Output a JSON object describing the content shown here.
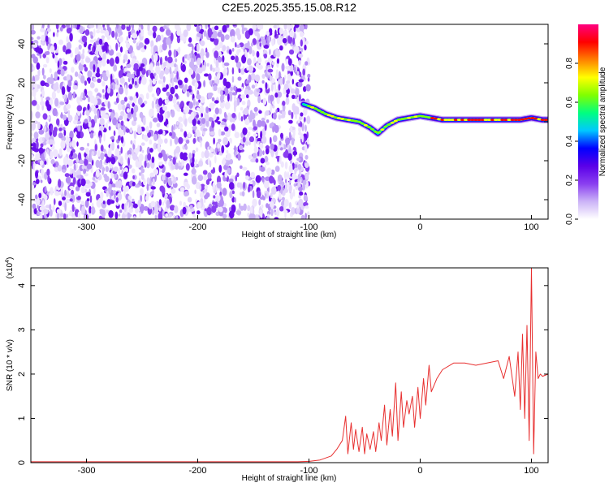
{
  "title": "C2E5.2025.355.15.08.R12",
  "chart_data": [
    {
      "type": "heatmap",
      "xlabel": "Height of straight line (km)",
      "ylabel": "Frequency (Hz)",
      "xlim": [
        -350,
        115
      ],
      "ylim": [
        -50,
        50
      ],
      "xticks": [
        "-300",
        "-200",
        "-100",
        "0",
        "100"
      ],
      "xtick_values": [
        -300,
        -200,
        -100,
        0,
        100
      ],
      "yticks": [
        "-40",
        "-20",
        "0",
        "20",
        "40"
      ],
      "ytick_values": [
        -40,
        -20,
        0,
        20,
        40
      ],
      "noise_region_km": [
        -350,
        -100
      ],
      "ridge": {
        "x": [
          -105,
          -95,
          -85,
          -75,
          -65,
          -55,
          -45,
          -38,
          -30,
          -20,
          -10,
          0,
          10,
          20,
          40,
          60,
          80,
          90,
          100,
          110,
          115
        ],
        "y": [
          9,
          7,
          4,
          2,
          1,
          0,
          -3,
          -6,
          -2,
          1,
          2,
          3,
          2,
          1,
          1,
          1,
          1,
          1,
          2,
          1,
          1
        ]
      },
      "colorbar": {
        "label": "Normalized spectral amplitude",
        "range": [
          0,
          1
        ],
        "ticks": [
          "0.0",
          "0.2",
          "0.4",
          "0.6",
          "0.8"
        ],
        "tick_values": [
          0.0,
          0.2,
          0.4,
          0.6,
          0.8
        ],
        "colors": [
          "#ffffff",
          "#cbb3f7",
          "#8a3ff0",
          "#5a00e8",
          "#0000ff",
          "#00c8ff",
          "#00ff80",
          "#80ff00",
          "#ffff00",
          "#ff8000",
          "#ff0000",
          "#ff0080"
        ]
      }
    },
    {
      "type": "line",
      "xlabel": "Height of straight line (km)",
      "ylabel": "SNR (10 * v/v)",
      "multiplier": "(x10",
      "multiplier_exp": "4",
      "multiplier_close": ")",
      "xlim": [
        -350,
        115
      ],
      "ylim": [
        0,
        4.4
      ],
      "xticks": [
        "-300",
        "-200",
        "-100",
        "0",
        "100"
      ],
      "xtick_values": [
        -300,
        -200,
        -100,
        0,
        100
      ],
      "yticks": [
        "0",
        "1",
        "2",
        "3",
        "4"
      ],
      "ytick_values": [
        0,
        1,
        2,
        3,
        4
      ],
      "color": "#e83030",
      "series": [
        {
          "name": "SNR",
          "x": [
            -350,
            -110,
            -100,
            -90,
            -80,
            -75,
            -70,
            -67,
            -65,
            -62,
            -60,
            -58,
            -55,
            -52,
            -50,
            -48,
            -45,
            -42,
            -40,
            -37,
            -35,
            -32,
            -30,
            -27,
            -25,
            -22,
            -20,
            -17,
            -15,
            -12,
            -10,
            -7,
            -5,
            -2,
            0,
            3,
            5,
            8,
            10,
            15,
            20,
            30,
            40,
            50,
            60,
            70,
            75,
            80,
            85,
            88,
            90,
            92,
            94,
            96,
            98,
            100,
            102,
            104,
            106,
            108,
            110,
            115
          ],
          "y": [
            0.02,
            0.02,
            0.03,
            0.06,
            0.15,
            0.3,
            0.5,
            1.05,
            0.2,
            0.9,
            0.3,
            0.75,
            0.25,
            0.8,
            0.2,
            0.65,
            0.3,
            0.7,
            0.25,
            0.9,
            0.5,
            1.3,
            0.4,
            1.2,
            0.6,
            1.8,
            0.5,
            1.6,
            0.8,
            1.4,
            1.1,
            1.5,
            0.8,
            1.7,
            1.0,
            1.9,
            1.3,
            2.2,
            1.6,
            1.9,
            2.1,
            2.25,
            2.25,
            2.2,
            2.25,
            2.3,
            1.9,
            2.4,
            1.5,
            2.5,
            1.2,
            2.9,
            1.0,
            3.1,
            0.5,
            4.4,
            0.2,
            2.5,
            1.9,
            2.0,
            1.95,
            2.0
          ]
        }
      ]
    }
  ]
}
